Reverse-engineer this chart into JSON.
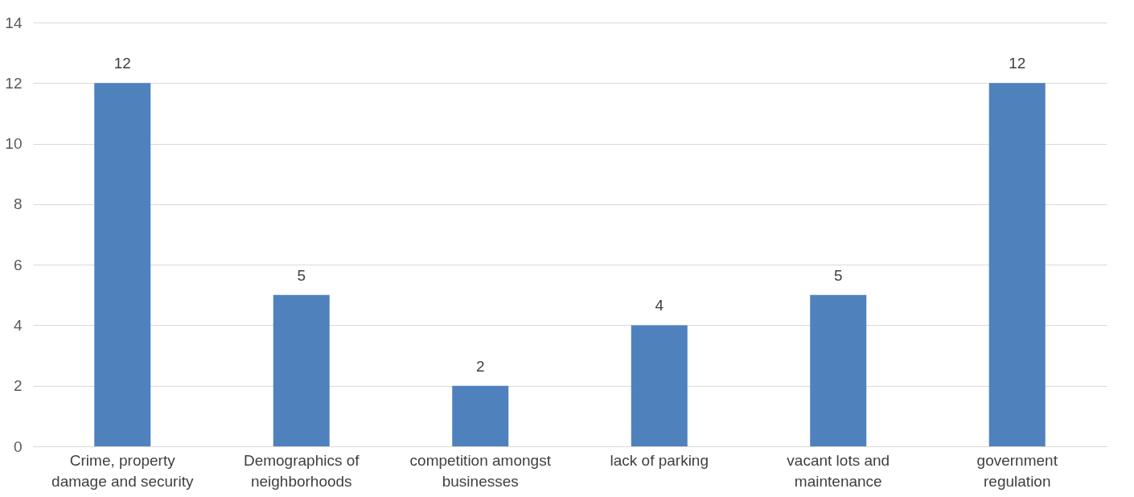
{
  "chart_data": {
    "type": "bar",
    "categories": [
      "Crime, property damage and security",
      "Demographics of neighborhoods",
      "competition amongst businesses",
      "lack of parking",
      "vacant lots and maintenance",
      "government regulation"
    ],
    "values": [
      12,
      5,
      2,
      4,
      5,
      12
    ],
    "color": "#4f81bd",
    "ylim": [
      0,
      14
    ],
    "yticks": [
      0,
      2,
      4,
      6,
      8,
      10,
      12,
      14
    ],
    "grid": "y",
    "data_labels": true
  }
}
